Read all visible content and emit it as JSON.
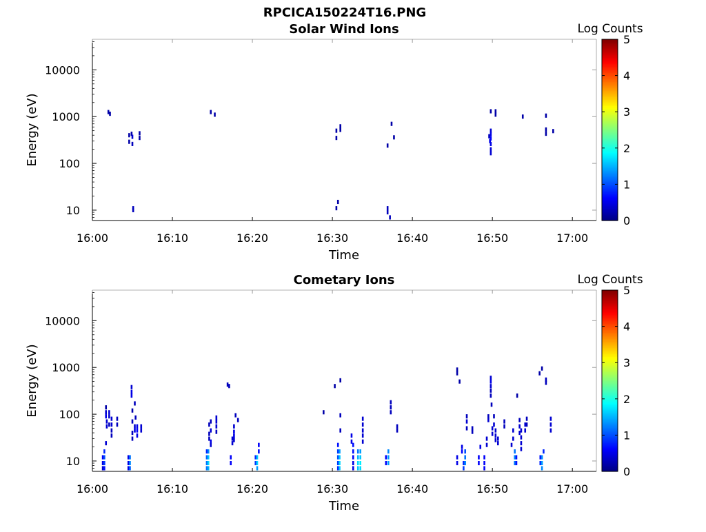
{
  "figure_title": "RPCICA150224T16.PNG",
  "chart_data": [
    {
      "type": "heatmap",
      "title": "Solar Wind Ions",
      "xlabel": "Time",
      "ylabel": "Energy (eV)",
      "x_tick_labels": [
        "16:00",
        "16:10",
        "16:20",
        "16:30",
        "16:40",
        "16:50",
        "17:00"
      ],
      "x_ticks_minutes": [
        0,
        10,
        20,
        30,
        40,
        50,
        60
      ],
      "xlim_minutes": [
        0,
        63
      ],
      "y_scale": "log",
      "y_tick_values": [
        10,
        100,
        1000,
        10000
      ],
      "y_tick_labels": [
        "10",
        "100",
        "1000",
        "10000"
      ],
      "ylim": [
        6,
        45000
      ],
      "colorbar": {
        "label": "Log Counts",
        "range": [
          0,
          5
        ],
        "tick_labels": [
          "0",
          "1",
          "2",
          "3",
          "4",
          "5"
        ],
        "colormap": "jet"
      },
      "cells": [
        [
          2.0,
          1250,
          0.2
        ],
        [
          2.2,
          1150,
          0.2
        ],
        [
          4.6,
          400,
          0.2
        ],
        [
          4.6,
          290,
          0.2
        ],
        [
          4.9,
          430,
          0.2
        ],
        [
          5.0,
          370,
          0.4
        ],
        [
          5.0,
          260,
          0.3
        ],
        [
          5.1,
          11,
          0.3
        ],
        [
          5.1,
          10,
          0.3
        ],
        [
          5.9,
          440,
          0.2
        ],
        [
          5.9,
          350,
          0.2
        ],
        [
          14.8,
          1250,
          0.2
        ],
        [
          15.3,
          1100,
          0.2
        ],
        [
          30.5,
          500,
          0.2
        ],
        [
          30.5,
          350,
          0.2
        ],
        [
          30.5,
          11,
          0.2
        ],
        [
          30.7,
          15,
          0.2
        ],
        [
          31.0,
          620,
          0.2
        ],
        [
          31.0,
          520,
          0.2
        ],
        [
          36.9,
          240,
          0.2
        ],
        [
          36.9,
          11,
          0.3
        ],
        [
          36.9,
          9,
          0.3
        ],
        [
          37.2,
          7,
          0.3
        ],
        [
          37.4,
          700,
          0.2
        ],
        [
          37.7,
          360,
          0.2
        ],
        [
          49.6,
          380,
          0.3
        ],
        [
          49.7,
          300,
          0.5
        ],
        [
          49.8,
          1300,
          0.2
        ],
        [
          49.8,
          500,
          0.4
        ],
        [
          49.8,
          420,
          0.5
        ],
        [
          49.8,
          340,
          0.6
        ],
        [
          49.8,
          260,
          0.5
        ],
        [
          49.8,
          200,
          0.4
        ],
        [
          49.8,
          165,
          0.4
        ],
        [
          50.4,
          1300,
          0.2
        ],
        [
          50.4,
          1100,
          0.2
        ],
        [
          53.8,
          1000,
          0.2
        ],
        [
          56.7,
          1050,
          0.2
        ],
        [
          56.7,
          530,
          0.2
        ],
        [
          56.7,
          430,
          0.2
        ],
        [
          57.6,
          490,
          0.2
        ]
      ]
    },
    {
      "type": "heatmap",
      "title": "Cometary Ions",
      "xlabel": "Time",
      "ylabel": "Energy (eV)",
      "x_tick_labels": [
        "16:00",
        "16:10",
        "16:20",
        "16:30",
        "16:40",
        "16:50",
        "17:00"
      ],
      "x_ticks_minutes": [
        0,
        10,
        20,
        30,
        40,
        50,
        60
      ],
      "xlim_minutes": [
        0,
        63
      ],
      "y_scale": "log",
      "y_tick_values": [
        10,
        100,
        1000,
        10000
      ],
      "y_tick_labels": [
        "10",
        "100",
        "1000",
        "10000"
      ],
      "ylim": [
        6,
        45000
      ],
      "colorbar": {
        "label": "Log Counts",
        "range": [
          0,
          5
        ],
        "tick_labels": [
          "0",
          "1",
          "2",
          "3",
          "4",
          "5"
        ],
        "colormap": "jet"
      },
      "cells": [
        [
          1.3,
          12,
          0.6
        ],
        [
          1.3,
          9,
          0.5
        ],
        [
          1.3,
          7,
          0.4
        ],
        [
          1.5,
          16,
          0.8
        ],
        [
          1.5,
          12,
          1.0
        ],
        [
          1.5,
          9,
          0.9
        ],
        [
          1.5,
          7,
          0.7
        ],
        [
          1.7,
          24,
          0.4
        ],
        [
          1.7,
          140,
          0.2
        ],
        [
          1.7,
          110,
          0.4
        ],
        [
          1.7,
          90,
          0.5
        ],
        [
          1.8,
          70,
          0.4
        ],
        [
          1.8,
          55,
          0.4
        ],
        [
          2.1,
          110,
          0.4
        ],
        [
          2.1,
          90,
          0.4
        ],
        [
          2.1,
          60,
          0.3
        ],
        [
          2.4,
          80,
          0.4
        ],
        [
          2.4,
          60,
          0.4
        ],
        [
          2.4,
          45,
          0.3
        ],
        [
          2.4,
          35,
          0.3
        ],
        [
          3.1,
          80,
          0.3
        ],
        [
          3.1,
          60,
          0.3
        ],
        [
          4.5,
          12,
          0.5
        ],
        [
          4.5,
          9,
          0.5
        ],
        [
          4.5,
          7,
          0.5
        ],
        [
          4.7,
          12,
          1.2
        ],
        [
          4.7,
          9,
          1.3
        ],
        [
          4.7,
          7,
          1.1
        ],
        [
          4.9,
          380,
          0.4
        ],
        [
          4.9,
          300,
          0.5
        ],
        [
          4.9,
          250,
          0.5
        ],
        [
          5.0,
          120,
          0.2
        ],
        [
          5.0,
          70,
          0.3
        ],
        [
          5.0,
          40,
          0.3
        ],
        [
          5.0,
          30,
          0.3
        ],
        [
          5.3,
          170,
          0.3
        ],
        [
          5.3,
          55,
          0.4
        ],
        [
          5.3,
          45,
          0.5
        ],
        [
          5.4,
          85,
          0.3
        ],
        [
          5.6,
          55,
          0.5
        ],
        [
          5.6,
          45,
          0.6
        ],
        [
          5.6,
          35,
          0.5
        ],
        [
          6.1,
          55,
          0.4
        ],
        [
          6.1,
          45,
          0.4
        ],
        [
          14.3,
          16,
          0.8
        ],
        [
          14.3,
          12,
          1.1
        ],
        [
          14.3,
          9,
          1.2
        ],
        [
          14.3,
          7,
          1.2
        ],
        [
          14.5,
          16,
          1.3
        ],
        [
          14.5,
          12,
          1.6
        ],
        [
          14.5,
          9,
          1.7
        ],
        [
          14.5,
          7,
          1.5
        ],
        [
          14.6,
          60,
          0.3
        ],
        [
          14.6,
          38,
          0.3
        ],
        [
          14.6,
          30,
          0.3
        ],
        [
          14.8,
          70,
          0.3
        ],
        [
          14.8,
          45,
          0.4
        ],
        [
          14.8,
          26,
          0.5
        ],
        [
          14.8,
          22,
          0.4
        ],
        [
          15.5,
          85,
          0.4
        ],
        [
          15.5,
          70,
          0.4
        ],
        [
          15.5,
          55,
          0.4
        ],
        [
          15.5,
          42,
          0.3
        ],
        [
          16.9,
          430,
          0.3
        ],
        [
          17.1,
          400,
          0.3
        ],
        [
          17.3,
          12,
          0.6
        ],
        [
          17.3,
          9,
          0.6
        ],
        [
          17.5,
          30,
          0.4
        ],
        [
          17.5,
          24,
          0.4
        ],
        [
          17.7,
          55,
          0.4
        ],
        [
          17.7,
          42,
          0.5
        ],
        [
          17.7,
          34,
          0.5
        ],
        [
          17.7,
          28,
          0.4
        ],
        [
          17.9,
          95,
          0.3
        ],
        [
          18.2,
          75,
          0.3
        ],
        [
          20.4,
          12,
          0.8
        ],
        [
          20.4,
          9,
          0.9
        ],
        [
          20.6,
          12,
          1.6
        ],
        [
          20.6,
          9,
          1.7
        ],
        [
          20.6,
          7,
          1.4
        ],
        [
          20.8,
          22,
          0.6
        ],
        [
          20.8,
          16,
          0.7
        ],
        [
          28.9,
          110,
          0.2
        ],
        [
          30.3,
          400,
          0.2
        ],
        [
          30.7,
          22,
          0.7
        ],
        [
          30.7,
          16,
          0.9
        ],
        [
          30.7,
          12,
          1.0
        ],
        [
          30.7,
          9,
          0.9
        ],
        [
          30.7,
          7,
          0.8
        ],
        [
          30.9,
          16,
          1.4
        ],
        [
          30.9,
          12,
          1.6
        ],
        [
          30.9,
          9,
          1.7
        ],
        [
          30.9,
          7,
          1.6
        ],
        [
          31.0,
          95,
          0.3
        ],
        [
          31.0,
          45,
          0.3
        ],
        [
          31.0,
          530,
          0.2
        ],
        [
          32.4,
          35,
          0.5
        ],
        [
          32.4,
          26,
          0.5
        ],
        [
          32.6,
          22,
          0.7
        ],
        [
          32.6,
          16,
          0.7
        ],
        [
          32.6,
          12,
          0.6
        ],
        [
          32.6,
          9,
          0.5
        ],
        [
          32.6,
          7,
          0.5
        ],
        [
          33.2,
          16,
          1.2
        ],
        [
          33.2,
          12,
          1.5
        ],
        [
          33.2,
          9,
          1.7
        ],
        [
          33.2,
          7,
          1.6
        ],
        [
          33.5,
          16,
          1.4
        ],
        [
          33.5,
          12,
          1.6
        ],
        [
          33.5,
          9,
          1.8
        ],
        [
          33.5,
          7,
          1.7
        ],
        [
          33.8,
          80,
          0.4
        ],
        [
          33.8,
          60,
          0.4
        ],
        [
          33.8,
          45,
          0.4
        ],
        [
          33.8,
          35,
          0.4
        ],
        [
          33.8,
          26,
          0.4
        ],
        [
          36.7,
          12,
          0.6
        ],
        [
          36.7,
          9,
          0.6
        ],
        [
          37.0,
          16,
          1.3
        ],
        [
          37.0,
          12,
          1.4
        ],
        [
          37.0,
          9,
          1.4
        ],
        [
          37.3,
          180,
          0.3
        ],
        [
          37.3,
          140,
          0.3
        ],
        [
          37.3,
          110,
          0.3
        ],
        [
          38.1,
          55,
          0.3
        ],
        [
          38.1,
          45,
          0.3
        ],
        [
          45.6,
          900,
          0.2
        ],
        [
          45.6,
          750,
          0.2
        ],
        [
          45.9,
          500,
          0.2
        ],
        [
          45.6,
          12,
          0.5
        ],
        [
          45.6,
          9,
          0.5
        ],
        [
          46.2,
          20,
          0.5
        ],
        [
          46.2,
          16,
          0.6
        ],
        [
          46.4,
          9,
          0.8
        ],
        [
          46.4,
          7,
          0.9
        ],
        [
          46.6,
          16,
          1.0
        ],
        [
          46.6,
          12,
          1.2
        ],
        [
          46.6,
          9,
          1.3
        ],
        [
          46.8,
          90,
          0.3
        ],
        [
          46.8,
          70,
          0.4
        ],
        [
          46.8,
          50,
          0.3
        ],
        [
          47.5,
          50,
          0.3
        ],
        [
          47.5,
          42,
          0.3
        ],
        [
          48.3,
          12,
          0.6
        ],
        [
          48.3,
          9,
          0.6
        ],
        [
          48.5,
          20,
          0.5
        ],
        [
          49.0,
          12,
          0.6
        ],
        [
          49.0,
          9,
          0.6
        ],
        [
          49.0,
          7,
          0.6
        ],
        [
          49.3,
          30,
          0.4
        ],
        [
          49.3,
          22,
          0.4
        ],
        [
          49.5,
          90,
          0.3
        ],
        [
          49.5,
          75,
          0.4
        ],
        [
          49.8,
          600,
          0.4
        ],
        [
          49.8,
          500,
          0.5
        ],
        [
          49.8,
          400,
          0.4
        ],
        [
          49.8,
          320,
          0.3
        ],
        [
          49.8,
          250,
          0.3
        ],
        [
          49.9,
          160,
          0.3
        ],
        [
          50.0,
          50,
          0.4
        ],
        [
          50.0,
          38,
          0.4
        ],
        [
          50.2,
          90,
          0.3
        ],
        [
          50.2,
          60,
          0.4
        ],
        [
          50.4,
          45,
          0.4
        ],
        [
          50.4,
          35,
          0.4
        ],
        [
          50.4,
          28,
          0.4
        ],
        [
          50.7,
          30,
          0.4
        ],
        [
          50.7,
          24,
          0.4
        ],
        [
          51.5,
          70,
          0.3
        ],
        [
          51.5,
          55,
          0.3
        ],
        [
          52.4,
          22,
          0.4
        ],
        [
          52.6,
          45,
          0.4
        ],
        [
          52.6,
          30,
          0.4
        ],
        [
          52.8,
          16,
          1.2
        ],
        [
          52.8,
          12,
          1.3
        ],
        [
          52.8,
          9,
          1.2
        ],
        [
          53.0,
          12,
          0.7
        ],
        [
          53.0,
          9,
          0.7
        ],
        [
          53.1,
          250,
          0.2
        ],
        [
          53.4,
          75,
          0.3
        ],
        [
          53.4,
          55,
          0.4
        ],
        [
          53.4,
          40,
          0.4
        ],
        [
          53.6,
          45,
          0.4
        ],
        [
          53.6,
          32,
          0.4
        ],
        [
          53.6,
          24,
          0.4
        ],
        [
          53.6,
          18,
          0.4
        ],
        [
          54.1,
          60,
          0.4
        ],
        [
          54.1,
          45,
          0.4
        ],
        [
          54.3,
          80,
          0.3
        ],
        [
          54.3,
          60,
          0.3
        ],
        [
          55.9,
          750,
          0.2
        ],
        [
          56.2,
          950,
          0.2
        ],
        [
          56.0,
          12,
          0.7
        ],
        [
          56.0,
          9,
          0.8
        ],
        [
          56.2,
          12,
          1.3
        ],
        [
          56.2,
          9,
          1.4
        ],
        [
          56.2,
          7,
          1.3
        ],
        [
          56.4,
          16,
          0.8
        ],
        [
          56.7,
          550,
          0.3
        ],
        [
          56.7,
          470,
          0.3
        ],
        [
          57.3,
          80,
          0.4
        ],
        [
          57.3,
          60,
          0.4
        ],
        [
          57.3,
          45,
          0.4
        ]
      ]
    }
  ]
}
